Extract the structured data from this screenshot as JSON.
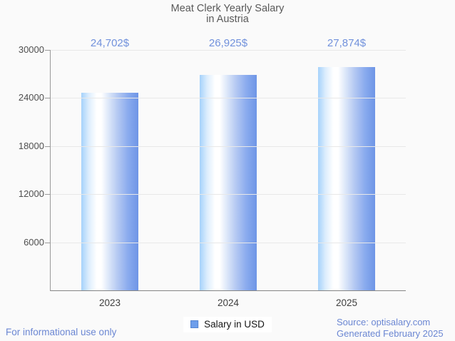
{
  "title": {
    "line1": "Meat Clerk Yearly Salary",
    "line2": "in Austria"
  },
  "legend": {
    "label": "Salary in USD"
  },
  "footer": {
    "disclaimer": "For informational use only",
    "source": "Source: optisalary.com",
    "generated": "Generated February 2025"
  },
  "colors": {
    "background": "#fafafa",
    "title": "#595959",
    "tick_label": "#4f4f4f",
    "x_label": "#3f3f3f",
    "gridline": "#e8e8e8",
    "axis": "#9a9a9a",
    "baseline": "#858585",
    "value_label": "#7191dc",
    "footer": "#6b87d3",
    "legend_text": "#161616",
    "legend_swatch": "#6d9eeb",
    "legend_swatch_border": "#5585d0",
    "bar_left": "#a5d2fb",
    "bar_highlight": "#ffffff",
    "bar_right": "#6e95e6"
  },
  "chart_data": {
    "type": "bar",
    "title": "Meat Clerk Yearly Salary in Austria",
    "categories": [
      "2023",
      "2024",
      "2025"
    ],
    "series": [
      {
        "name": "Salary in USD",
        "values": [
          24702,
          26925,
          27874
        ]
      }
    ],
    "value_labels": [
      "24,702$",
      "26,925$",
      "27,874$"
    ],
    "xlabel": "",
    "ylabel": "",
    "ylim": [
      0,
      30000
    ],
    "yticks": [
      6000,
      12000,
      18000,
      24000,
      30000
    ],
    "grid": true,
    "legend_position": "bottom"
  }
}
